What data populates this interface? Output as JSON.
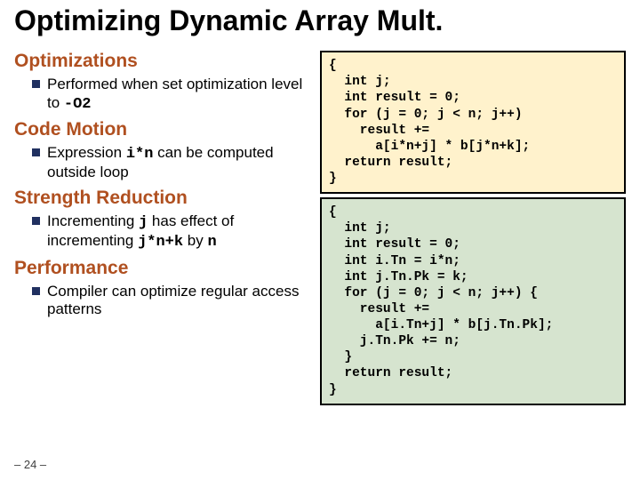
{
  "title": "Optimizing Dynamic Array Mult.",
  "colors": {
    "heading": "#b05020",
    "bullet": "#203060",
    "code_bg_top": "#fff2cc",
    "code_bg_bottom": "#d6e4cf",
    "code_border": "#000000"
  },
  "sections": [
    {
      "heading": "Optimizations",
      "bullets": [
        {
          "pre": "Performed when set optimization level to ",
          "code": "-O2",
          "post": ""
        }
      ]
    },
    {
      "heading": "Code Motion",
      "bullets": [
        {
          "pre": "Expression ",
          "code": "i*n",
          "post": " can be computed outside loop"
        }
      ]
    },
    {
      "heading": "Strength Reduction",
      "bullets": [
        {
          "pre": "Incrementing ",
          "code": "j",
          "post": " has effect of incrementing ",
          "code2": "j*n+k",
          "post2": " by ",
          "code3": "n"
        }
      ]
    },
    {
      "heading": "Performance",
      "bullets": [
        {
          "pre": "Compiler can optimize regular access patterns",
          "code": "",
          "post": ""
        }
      ]
    }
  ],
  "code_top": "{\n  int j;\n  int result = 0;\n  for (j = 0; j < n; j++)\n    result +=\n      a[i*n+j] * b[j*n+k];\n  return result;\n}",
  "code_bottom": "{\n  int j;\n  int result = 0;\n  int i.Tn = i*n;\n  int j.Tn.Pk = k;\n  for (j = 0; j < n; j++) {\n    result +=\n      a[i.Tn+j] * b[j.Tn.Pk];\n    j.Tn.Pk += n;\n  }\n  return result;\n}",
  "page_number": "– 24 –"
}
